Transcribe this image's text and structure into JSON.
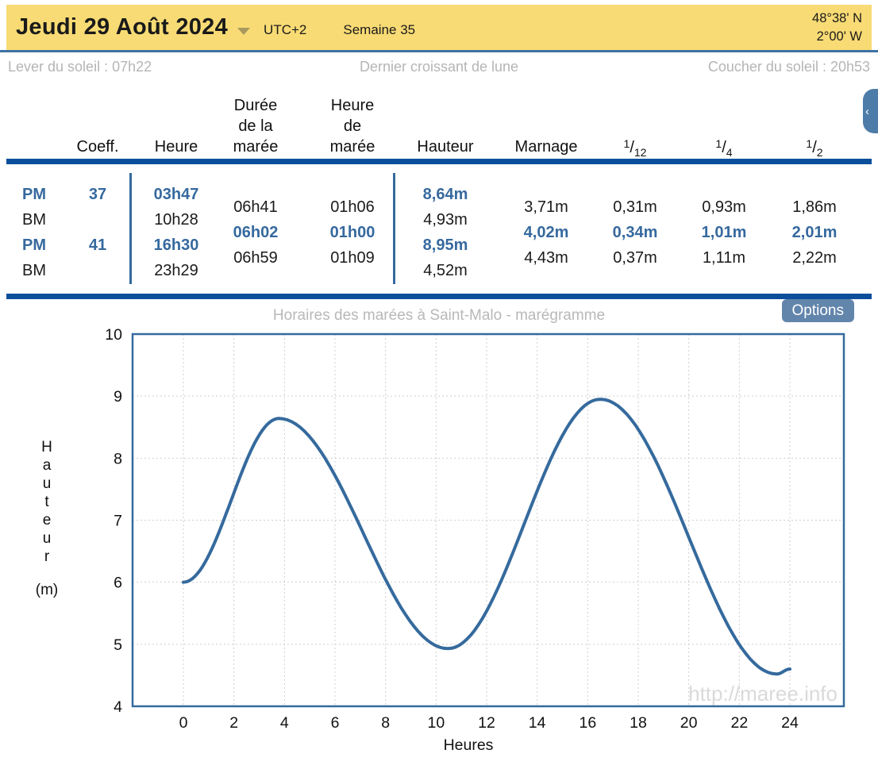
{
  "header": {
    "date": "Jeudi 29 Août 2024",
    "timezone": "UTC+2",
    "week": "Semaine 35",
    "lat": "48°38' N",
    "lon": "2°00' W"
  },
  "sun": {
    "sunrise": "Lever du soleil : 07h22",
    "moon": "Dernier croissant de lune",
    "sunset": "Coucher du soleil : 20h53"
  },
  "tide_table": {
    "columns": [
      {
        "id": "coeff",
        "lines": [
          "Coeff."
        ]
      },
      {
        "id": "heure",
        "lines": [
          "Heure"
        ]
      },
      {
        "id": "duree",
        "lines": [
          "Durée",
          "de la",
          "marée"
        ]
      },
      {
        "id": "heure_maree",
        "lines": [
          "Heure",
          "de",
          "marée"
        ]
      },
      {
        "id": "hauteur",
        "lines": [
          "Hauteur"
        ]
      },
      {
        "id": "marnage",
        "lines": [
          "Marnage"
        ]
      },
      {
        "id": "f12",
        "frac": "1/12"
      },
      {
        "id": "f4",
        "frac": "1/4"
      },
      {
        "id": "f2",
        "frac": "1/2"
      }
    ],
    "main_rows": [
      {
        "type": "PM",
        "coeff": "37",
        "heure": "03h47",
        "hauteur": "8,64m",
        "highlight": true
      },
      {
        "type": "BM",
        "coeff": "",
        "heure": "10h28",
        "hauteur": "4,93m",
        "highlight": false
      },
      {
        "type": "PM",
        "coeff": "41",
        "heure": "16h30",
        "hauteur": "8,95m",
        "highlight": true
      },
      {
        "type": "BM",
        "coeff": "",
        "heure": "23h29",
        "hauteur": "4,52m",
        "highlight": false
      }
    ],
    "between_rows": [
      {
        "duree": "06h41",
        "heure_maree": "01h06",
        "marnage": "3,71m",
        "f12": "0,31m",
        "f4": "0,93m",
        "f2": "1,86m",
        "highlight": false
      },
      {
        "duree": "06h02",
        "heure_maree": "01h00",
        "marnage": "4,02m",
        "f12": "0,34m",
        "f4": "1,01m",
        "f2": "2,01m",
        "highlight": true
      },
      {
        "duree": "06h59",
        "heure_maree": "01h09",
        "marnage": "4,43m",
        "f12": "0,37m",
        "f4": "1,11m",
        "f2": "2,22m",
        "highlight": false
      }
    ]
  },
  "options_label": "Options",
  "chart_data": {
    "type": "line",
    "title": "Horaires des marées à Saint-Malo - marégramme",
    "xlabel": "Heures",
    "ylabel_vertical": [
      "H",
      "a",
      "u",
      "t",
      "e",
      "u",
      "r"
    ],
    "ylabel_unit": "(m)",
    "xlim": [
      0,
      24
    ],
    "ylim": [
      4,
      10
    ],
    "x_ticks": [
      0,
      2,
      4,
      6,
      8,
      10,
      12,
      14,
      16,
      18,
      20,
      22,
      24
    ],
    "y_ticks": [
      4,
      5,
      6,
      7,
      8,
      9,
      10
    ],
    "extremes": [
      {
        "hour": 0.0,
        "height": 6.0
      },
      {
        "hour": 3.78,
        "height": 8.64
      },
      {
        "hour": 10.47,
        "height": 4.93
      },
      {
        "hour": 16.5,
        "height": 8.95
      },
      {
        "hour": 23.48,
        "height": 4.52
      },
      {
        "hour": 24.0,
        "height": 4.6
      }
    ],
    "line_color": "#356a9d",
    "grid": true,
    "legend": false,
    "watermark": "http://maree.info"
  }
}
